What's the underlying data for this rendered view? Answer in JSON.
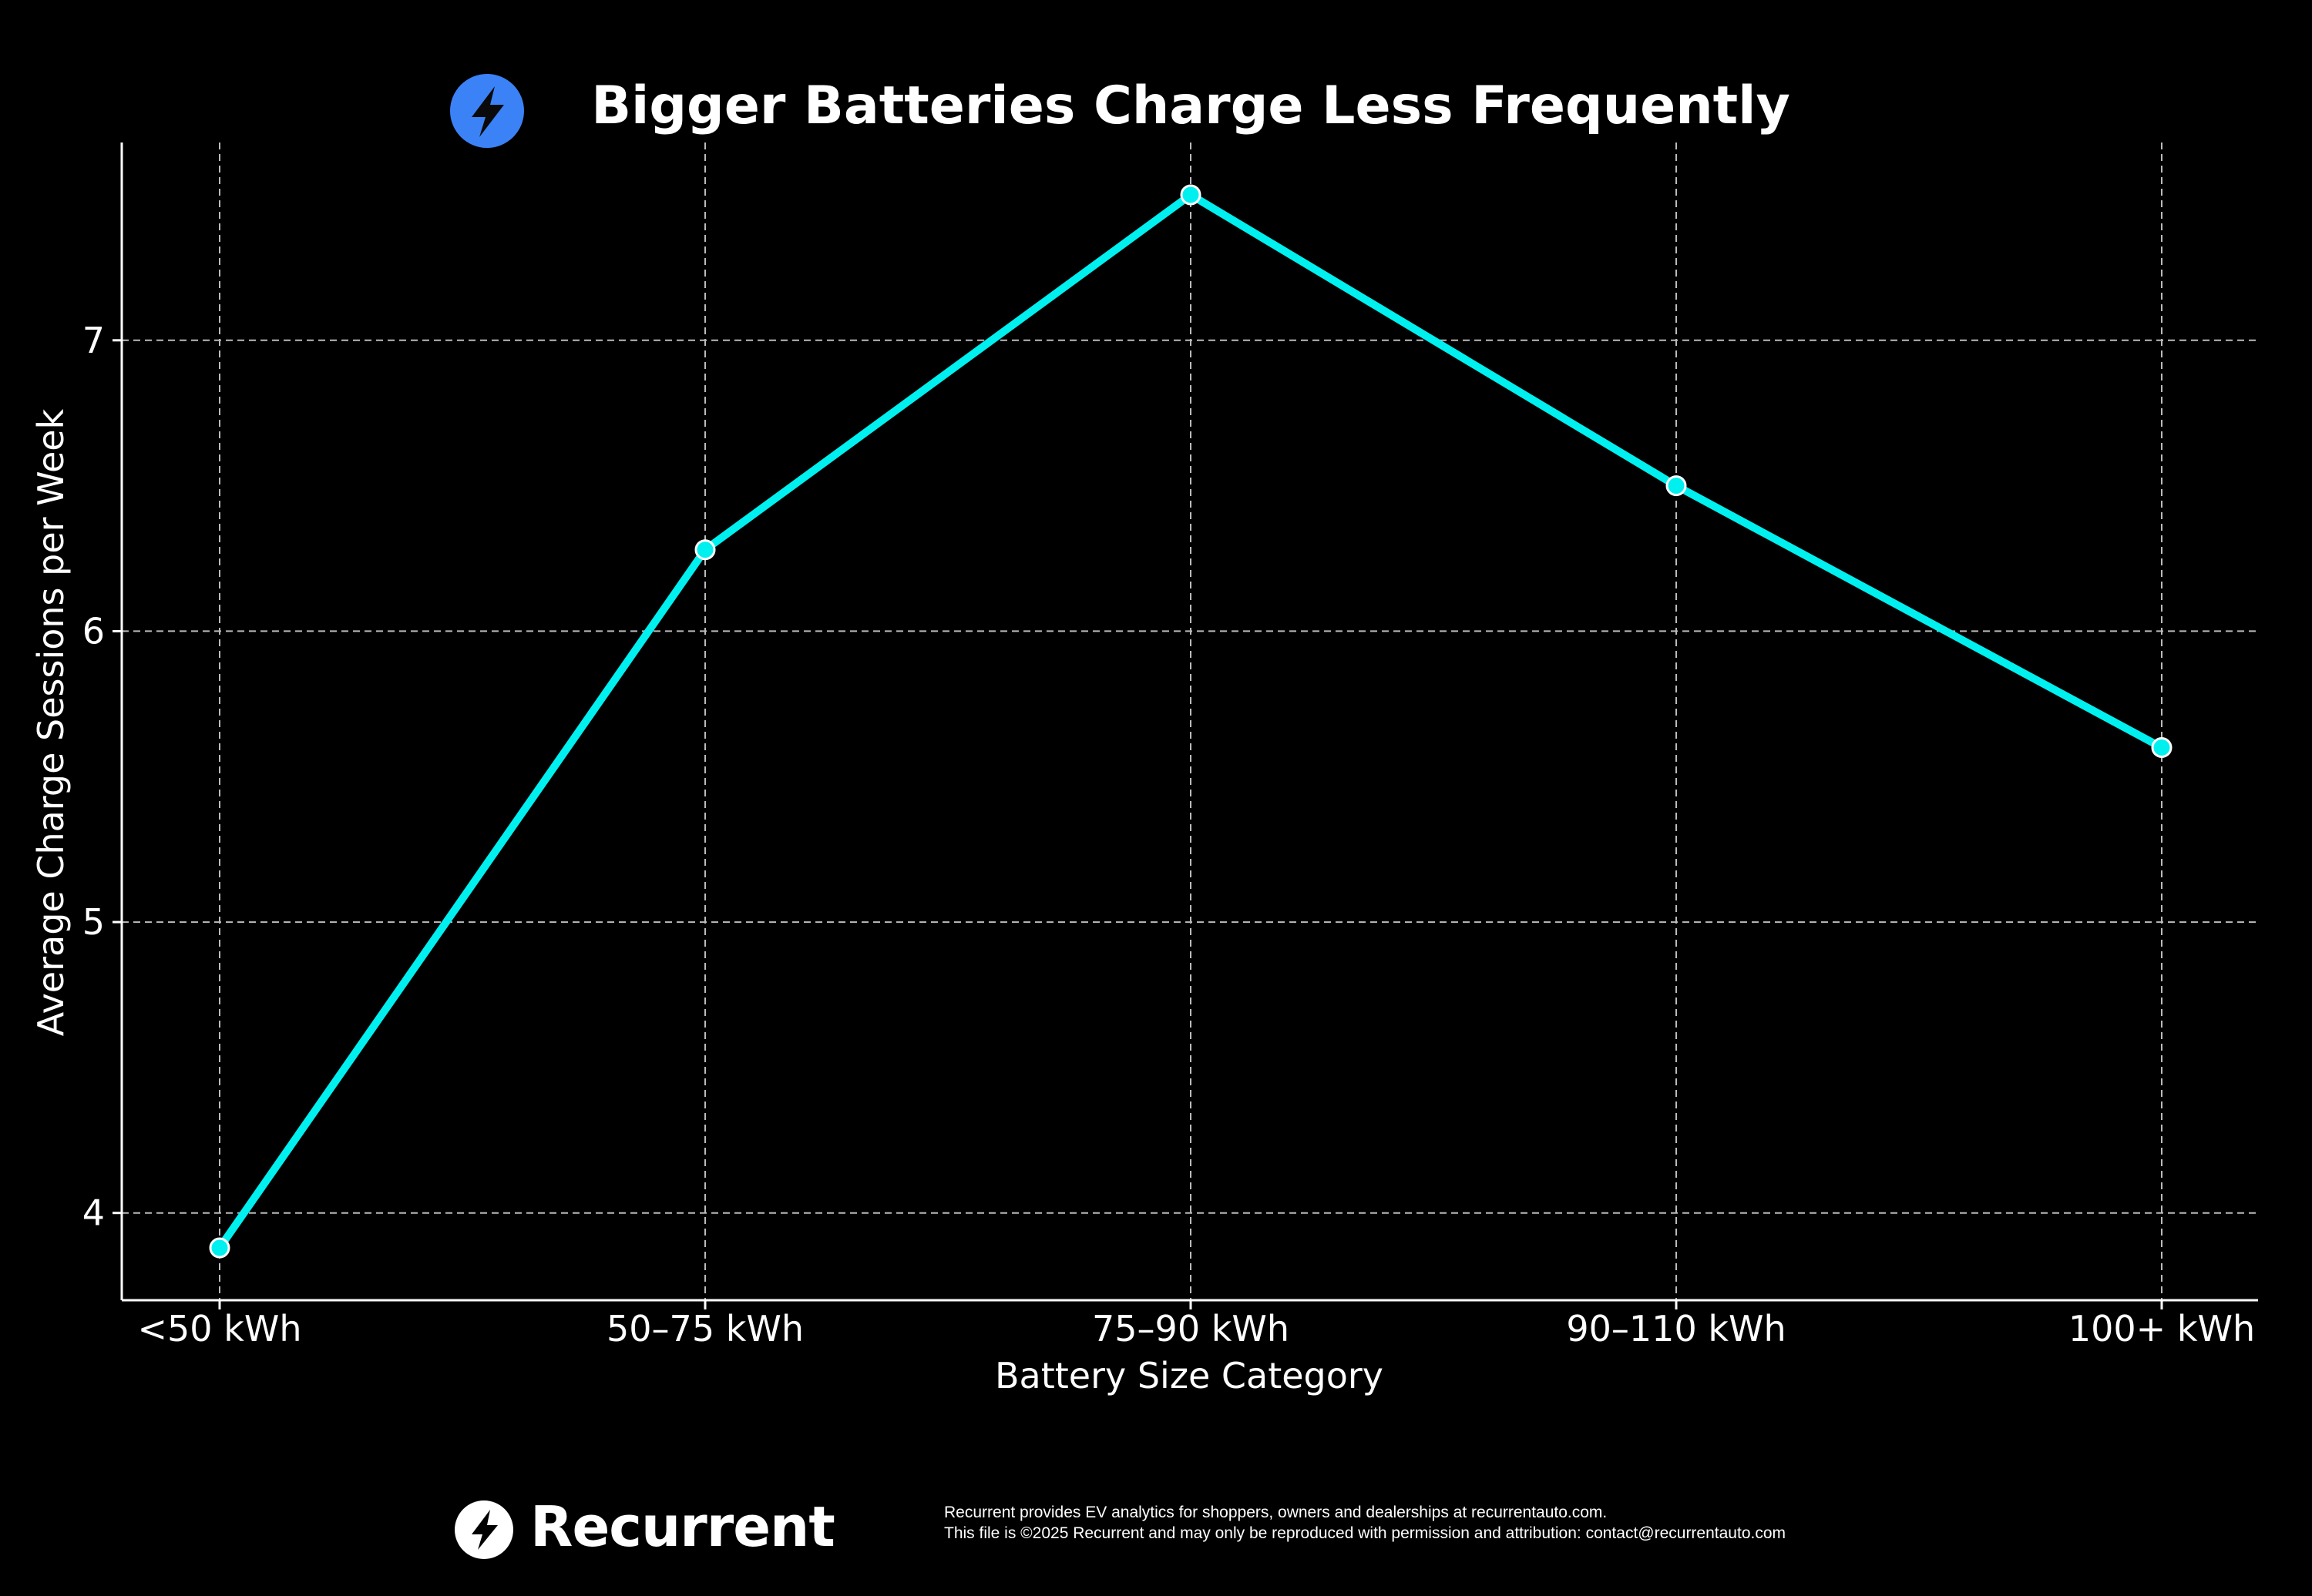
{
  "chart_data": {
    "type": "line",
    "title": "Bigger Batteries Charge Less Frequently",
    "xlabel": "Battery Size Category",
    "ylabel": "Average Charge Sessions per Week",
    "categories": [
      "<50 kWh",
      "50–75 kWh",
      "75–90 kWh",
      "90–110 kWh",
      "100+ kWh"
    ],
    "series": [
      {
        "values": [
          3.88,
          6.28,
          7.5,
          6.5,
          5.6
        ],
        "color": "#00f0f0"
      }
    ],
    "yticks": [
      "4",
      "5",
      "6",
      "7"
    ],
    "ylim": [
      3.7,
      7.68
    ],
    "grid": true,
    "colors": {
      "background": "#000000",
      "line": "#00f0f0",
      "grid": "#bbbbbb",
      "icon_badge": "#3b82f6"
    }
  },
  "footer": {
    "logo_text": "Recurrent",
    "note_line1": "Recurrent provides EV analytics for shoppers, owners and dealerships at recurrentauto.com.",
    "note_line2": "This file is ©2025 Recurrent and may only be reproduced with permission and attribution: contact@recurrentauto.com"
  },
  "icons": {
    "title_icon": "lightning-bolt-icon",
    "logo_icon": "lightning-bolt-icon"
  }
}
